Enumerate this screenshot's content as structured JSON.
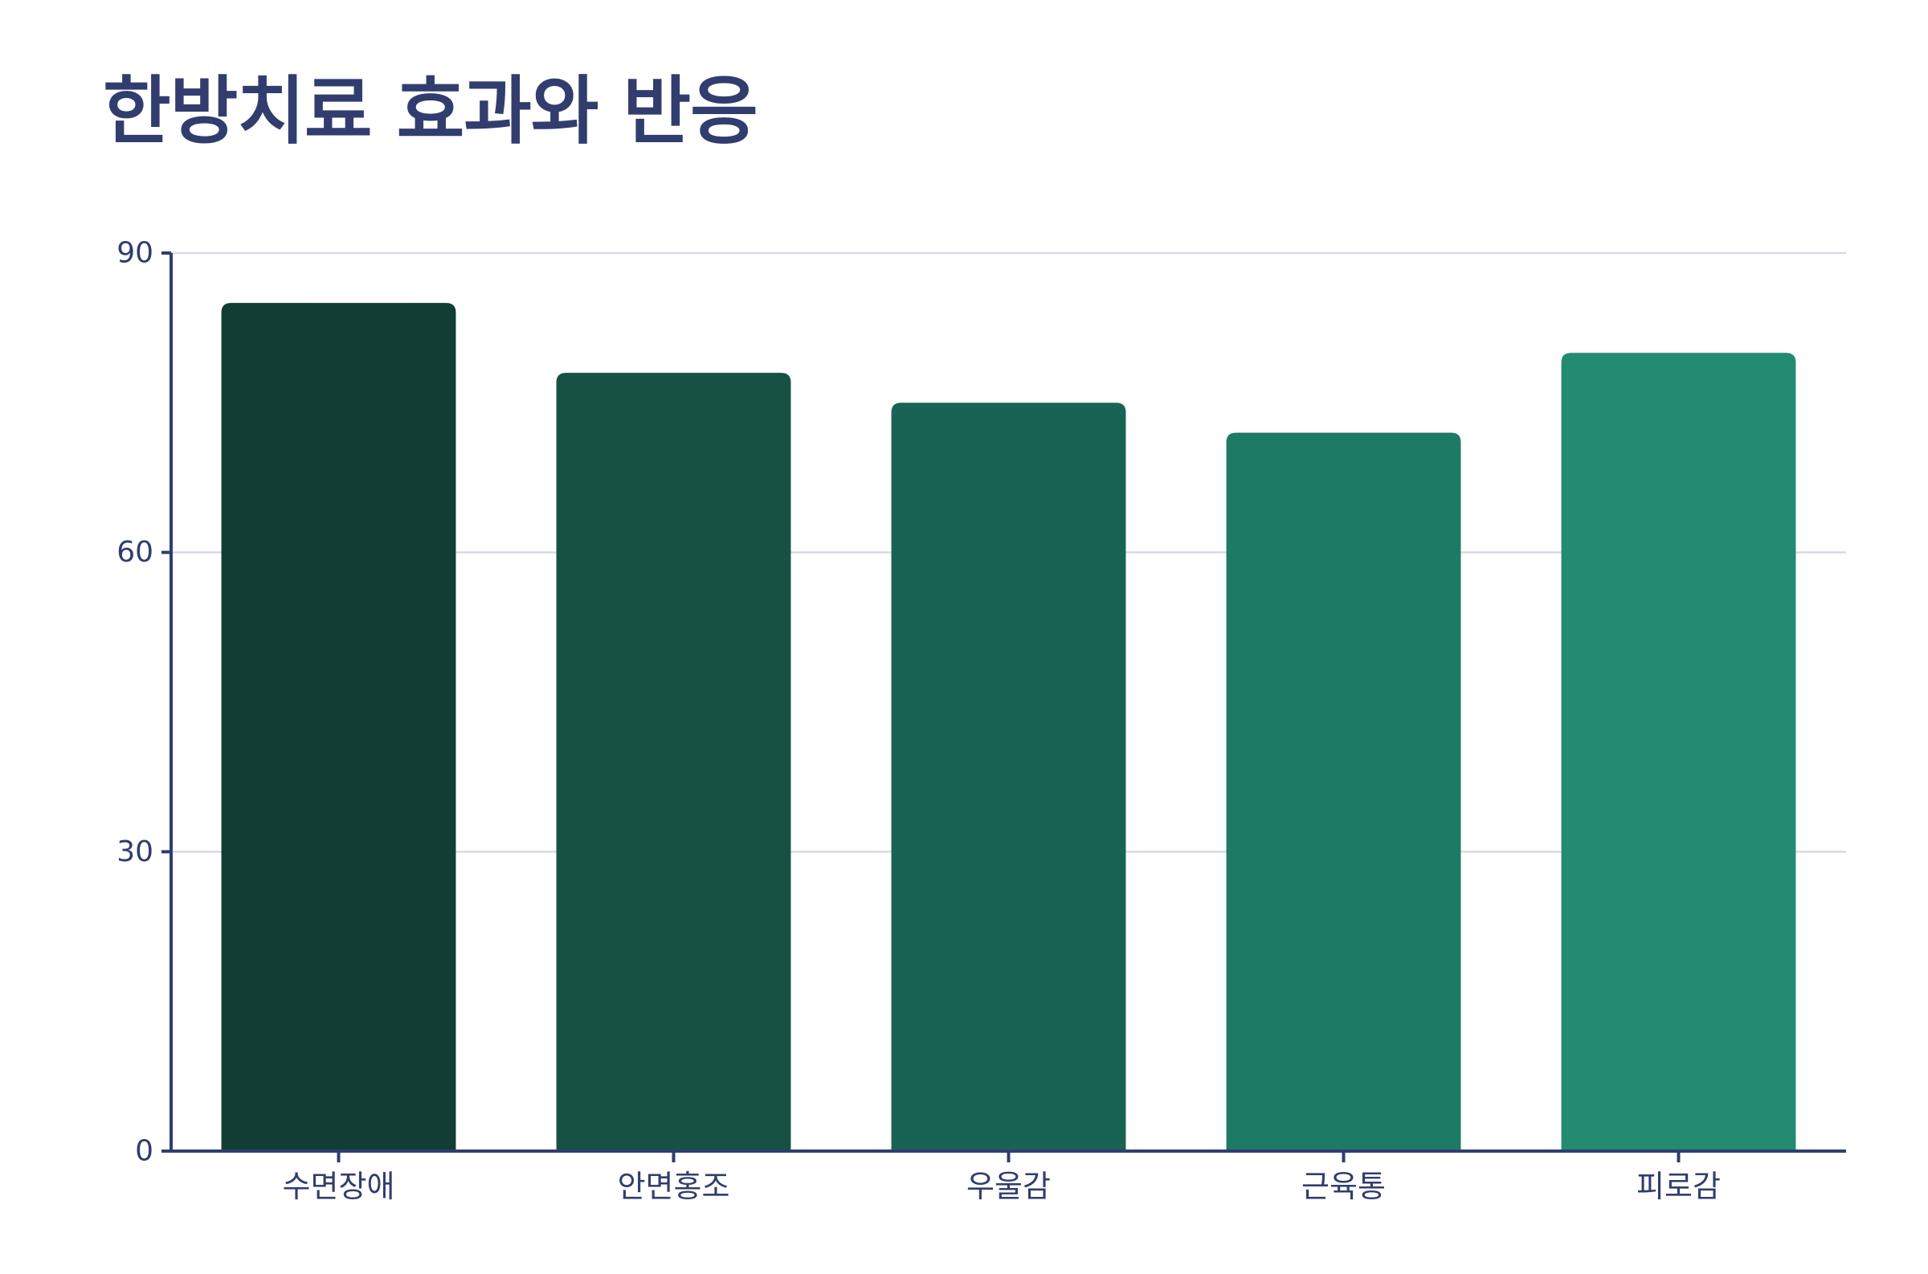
{
  "chart_data": {
    "type": "bar",
    "title": "한방치료 효과와 반응",
    "xlabel": "",
    "ylabel": "",
    "categories": [
      "수면장애",
      "안면홍조",
      "우울감",
      "근육통",
      "피로감"
    ],
    "values": [
      85,
      78,
      75,
      72,
      80
    ],
    "ylim": [
      0,
      90
    ],
    "yticks": [
      0,
      30,
      60,
      90
    ],
    "grid": true,
    "legend": "none",
    "colors": [
      "#113d34",
      "#155244",
      "#186354",
      "#1c7a65",
      "#228b71"
    ],
    "axis_color": "#313d6e",
    "grid_color": "#d9d9e3"
  }
}
